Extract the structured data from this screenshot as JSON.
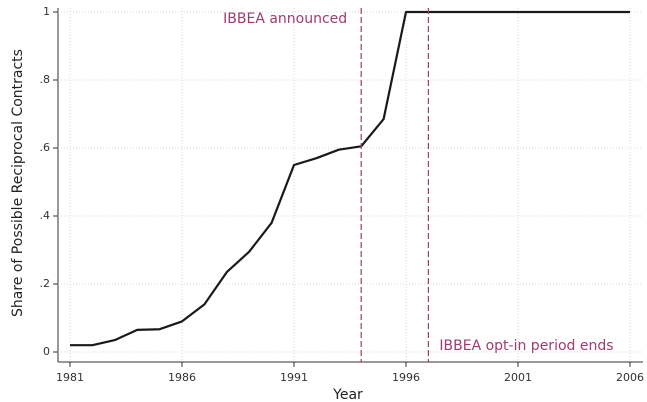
{
  "chart_data": {
    "type": "line",
    "x_label": "Year",
    "y_label": "Share of Possible Reciprocal Contracts",
    "x": [
      1981,
      1982,
      1983,
      1984,
      1985,
      1986,
      1987,
      1988,
      1989,
      1990,
      1991,
      1992,
      1993,
      1994,
      1995,
      1996,
      1997,
      1998,
      1999,
      2000,
      2001,
      2002,
      2003,
      2004,
      2005,
      2006
    ],
    "values": [
      0.02,
      0.02,
      0.035,
      0.065,
      0.067,
      0.09,
      0.14,
      0.235,
      0.295,
      0.38,
      0.55,
      0.57,
      0.595,
      0.605,
      0.685,
      1,
      1,
      1,
      1,
      1,
      1,
      1,
      1,
      1,
      1,
      1
    ],
    "color": "#1a1a1a",
    "xlim": [
      1981,
      2006
    ],
    "xticks": [
      1981,
      1986,
      1991,
      1996,
      2001,
      2006
    ],
    "ylim": [
      0,
      1
    ],
    "yticks": [
      0,
      {
        "value": 0.2,
        "label": ".2"
      },
      {
        "value": 0.4,
        "label": ".4"
      },
      {
        "value": 0.6,
        "label": ".6"
      },
      {
        "value": 0.8,
        "label": ".8"
      },
      1
    ],
    "grid": true,
    "vlines": [
      {
        "x": 1994,
        "label": "IBBEA announced",
        "color": "#a03a72"
      },
      {
        "x": 1997,
        "label": "IBBEA opt-in period ends",
        "color": "#a03a72"
      }
    ]
  }
}
